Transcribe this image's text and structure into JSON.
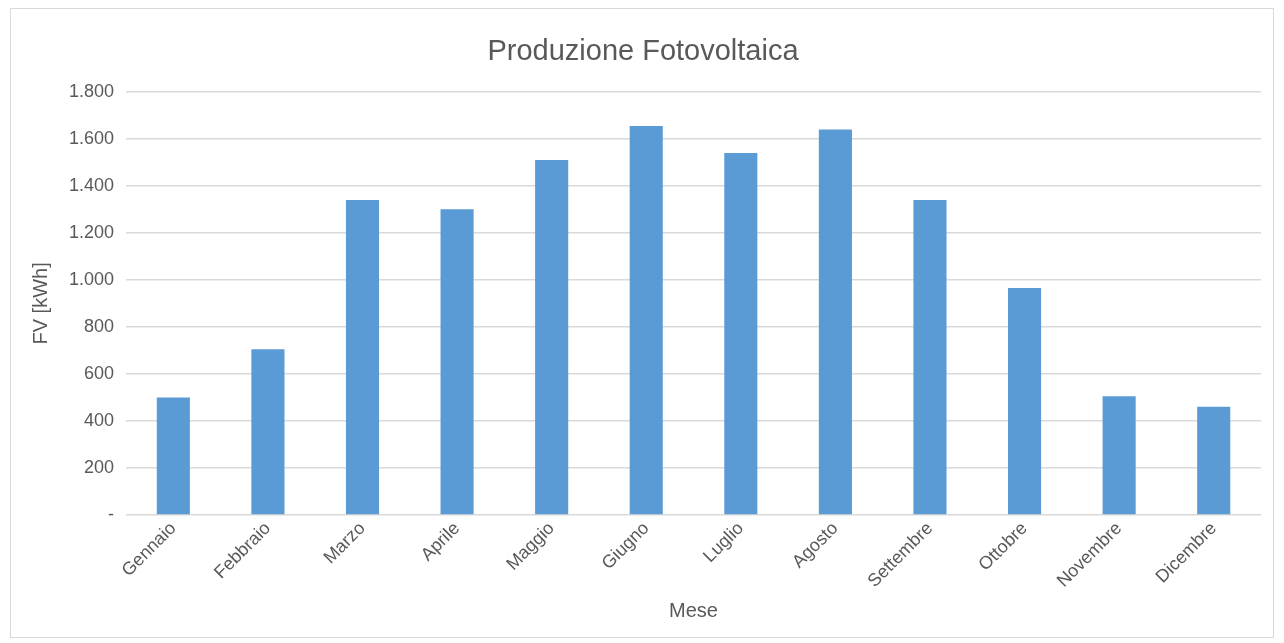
{
  "chart_data": {
    "type": "bar",
    "title": "Produzione Fotovoltaica",
    "xlabel": "Mese",
    "ylabel": "FV [kWh]",
    "categories": [
      "Gennaio",
      "Febbraio",
      "Marzo",
      "Aprile",
      "Maggio",
      "Giugno",
      "Luglio",
      "Agosto",
      "Settembre",
      "Ottobre",
      "Novembre",
      "Dicembre"
    ],
    "values": [
      500,
      705,
      1340,
      1300,
      1510,
      1655,
      1540,
      1640,
      1340,
      965,
      505,
      460
    ],
    "color": "#5b9bd5",
    "ylim": [
      0,
      1800
    ],
    "yticks": [
      {
        "value": 0,
        "label": "-"
      },
      {
        "value": 200,
        "label": "200"
      },
      {
        "value": 400,
        "label": "400"
      },
      {
        "value": 600,
        "label": "600"
      },
      {
        "value": 800,
        "label": "800"
      },
      {
        "value": 1000,
        "label": "1.000"
      },
      {
        "value": 1200,
        "label": "1.200"
      },
      {
        "value": 1400,
        "label": "1.400"
      },
      {
        "value": 1600,
        "label": "1.600"
      },
      {
        "value": 1800,
        "label": "1.800"
      }
    ],
    "grid": "y",
    "legend": false
  }
}
